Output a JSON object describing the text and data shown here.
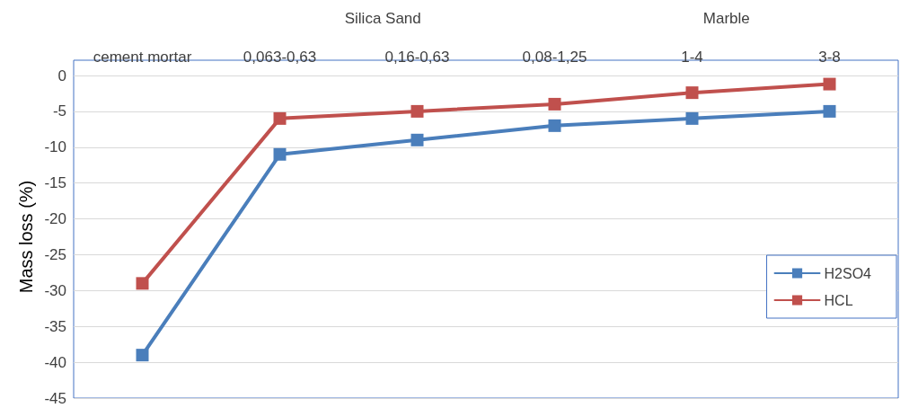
{
  "chart_data": {
    "type": "line",
    "ylabel": "Mass loss (%)",
    "categories": [
      "cement mortar",
      "0,063-0,63",
      "0,16-0,63",
      "0,08-1,25",
      "1-4",
      "3-8"
    ],
    "series": [
      {
        "name": "H2SO4",
        "color": "#4a7ebb",
        "values": [
          -39,
          -11,
          -9,
          -7,
          -6,
          -5
        ]
      },
      {
        "name": "HCL",
        "color": "#c0504d",
        "values": [
          -29,
          -6,
          -5,
          -4,
          -2.4,
          -1.2
        ]
      }
    ],
    "annotations": [
      "Silica Sand",
      "Marble"
    ],
    "ylim": [
      -45,
      0
    ],
    "yticks": [
      -45,
      -40,
      -35,
      -30,
      -25,
      -20,
      -15,
      -10,
      -5,
      0
    ],
    "grid": "y",
    "legend": "bottom right",
    "marker": "square",
    "line_style": "solid"
  }
}
